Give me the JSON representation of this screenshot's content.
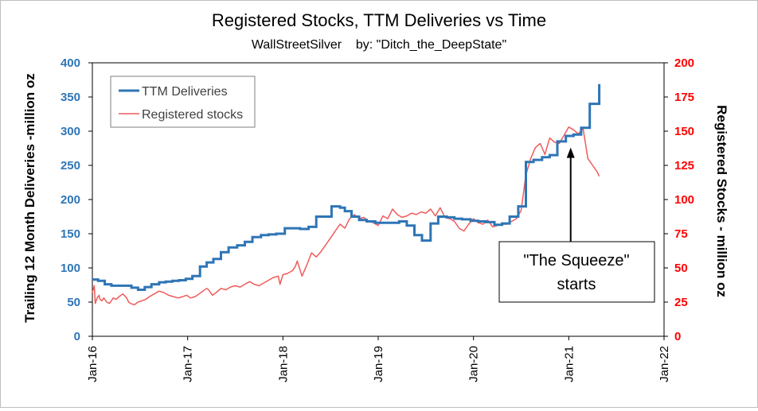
{
  "chart_data": {
    "type": "line",
    "title": "Registered Stocks, TTM Deliveries vs Time",
    "subtitle": "WallStreetSilver    by: \"Ditch_the_DeepState\"",
    "ylabel_left": "Trailing  12 Month Deliveries -million oz",
    "ylabel_right": "Registered Stocks  - million oz",
    "xlabel": "",
    "ylim_left": [
      0,
      400
    ],
    "ylim_right": [
      0,
      200
    ],
    "yticks_left": [
      "0",
      "50",
      "100",
      "150",
      "200",
      "250",
      "300",
      "350",
      "400"
    ],
    "yticks_right": [
      "0",
      "25",
      "50",
      "75",
      "100",
      "125",
      "150",
      "175",
      "200"
    ],
    "xlim": [
      2016.0,
      2022.0
    ],
    "xticks": [
      "Jan-16",
      "Jan-17",
      "Jan-18",
      "Jan-19",
      "Jan-20",
      "Jan-21",
      "Jan-22"
    ],
    "grid": false,
    "legend_position": "top-left",
    "colors": {
      "ttm": "#2e75b6",
      "registered": "#f05a5a",
      "left_axis": "#2e75b6",
      "right_axis": "#ff0000"
    },
    "series": [
      {
        "name": "TTM Deliveries",
        "axis": "left",
        "step": true,
        "x": [
          2016.0,
          2016.06,
          2016.13,
          2016.2,
          2016.27,
          2016.35,
          2016.41,
          2016.48,
          2016.55,
          2016.62,
          2016.7,
          2016.77,
          2016.84,
          2016.91,
          2016.98,
          2017.05,
          2017.13,
          2017.2,
          2017.27,
          2017.35,
          2017.43,
          2017.52,
          2017.6,
          2017.68,
          2017.77,
          2017.85,
          2017.93,
          2018.02,
          2018.1,
          2018.18,
          2018.27,
          2018.35,
          2018.43,
          2018.51,
          2018.6,
          2018.65,
          2018.72,
          2018.8,
          2018.88,
          2018.97,
          2019.05,
          2019.13,
          2019.22,
          2019.3,
          2019.38,
          2019.46,
          2019.55,
          2019.63,
          2019.72,
          2019.8,
          2019.88,
          2019.97,
          2020.05,
          2020.13,
          2020.22,
          2020.3,
          2020.38,
          2020.47,
          2020.55,
          2020.63,
          2020.72,
          2020.8,
          2020.88,
          2020.97,
          2021.05,
          2021.13,
          2021.22,
          2021.3,
          2021.32
        ],
        "values": [
          83,
          81,
          76,
          74,
          74,
          74,
          71,
          68,
          72,
          76,
          79,
          80,
          81,
          82,
          84,
          88,
          102,
          108,
          113,
          123,
          130,
          133,
          138,
          145,
          148,
          149,
          150,
          158,
          158,
          157,
          160,
          175,
          175,
          190,
          188,
          183,
          175,
          170,
          168,
          166,
          166,
          166,
          168,
          162,
          148,
          140,
          165,
          175,
          174,
          172,
          171,
          169,
          168,
          167,
          163,
          165,
          175,
          190,
          255,
          258,
          262,
          265,
          285,
          293,
          295,
          305,
          340,
          340,
          369
        ]
      },
      {
        "name": "Registered stocks",
        "axis": "right",
        "step": false,
        "x": [
          2016.0,
          2016.02,
          2016.03,
          2016.05,
          2016.07,
          2016.08,
          2016.1,
          2016.12,
          2016.15,
          2016.18,
          2016.22,
          2016.25,
          2016.28,
          2016.32,
          2016.36,
          2016.38,
          2016.4,
          2016.44,
          2016.48,
          2016.52,
          2016.56,
          2016.6,
          2016.65,
          2016.7,
          2016.75,
          2016.8,
          2016.85,
          2016.9,
          2016.95,
          2016.99,
          2017.03,
          2017.08,
          2017.12,
          2017.16,
          2017.2,
          2017.22,
          2017.26,
          2017.3,
          2017.35,
          2017.4,
          2017.45,
          2017.5,
          2017.55,
          2017.6,
          2017.65,
          2017.7,
          2017.75,
          2017.8,
          2017.85,
          2017.9,
          2017.95,
          2017.97,
          2018.0,
          2018.05,
          2018.1,
          2018.13,
          2018.15,
          2018.2,
          2018.25,
          2018.3,
          2018.35,
          2018.4,
          2018.45,
          2018.5,
          2018.55,
          2018.6,
          2018.65,
          2018.7,
          2018.75,
          2018.8,
          2018.85,
          2018.9,
          2018.95,
          2019.0,
          2019.05,
          2019.1,
          2019.15,
          2019.2,
          2019.25,
          2019.3,
          2019.35,
          2019.4,
          2019.45,
          2019.5,
          2019.55,
          2019.6,
          2019.65,
          2019.7,
          2019.75,
          2019.8,
          2019.85,
          2019.9,
          2019.95,
          2020.0,
          2020.05,
          2020.1,
          2020.15,
          2020.2,
          2020.25,
          2020.3,
          2020.35,
          2020.4,
          2020.45,
          2020.5,
          2020.55,
          2020.6,
          2020.65,
          2020.7,
          2020.75,
          2020.8,
          2020.85,
          2020.9,
          2020.95,
          2021.0,
          2021.05,
          2021.1,
          2021.15,
          2021.2,
          2021.25,
          2021.3,
          2021.32
        ],
        "values": [
          32,
          37,
          24,
          28,
          30,
          27,
          26,
          28,
          25,
          24,
          28,
          27,
          29,
          31,
          28,
          25,
          24,
          23,
          25,
          26,
          27,
          29,
          31,
          33,
          32,
          30,
          29,
          28,
          29,
          30,
          28,
          29,
          31,
          33,
          35,
          34,
          30,
          32,
          35,
          34,
          36,
          37,
          36,
          38,
          40,
          38,
          37,
          39,
          41,
          43,
          44,
          38,
          45,
          46,
          48,
          51,
          55,
          44,
          52,
          61,
          58,
          62,
          67,
          72,
          77,
          82,
          79,
          86,
          89,
          86,
          87,
          84,
          83,
          81,
          88,
          86,
          93,
          89,
          87,
          88,
          90,
          89,
          91,
          90,
          93,
          88,
          94,
          87,
          86,
          84,
          79,
          77,
          82,
          86,
          83,
          82,
          85,
          80,
          81,
          82,
          82,
          84,
          86,
          92,
          118,
          130,
          138,
          141,
          133,
          145,
          142,
          141,
          147,
          153,
          151,
          148,
          152,
          130,
          125,
          120,
          117
        ]
      }
    ],
    "annotations": [
      {
        "text_line1": "\"The Squeeze\"",
        "text_line2": "starts",
        "arrow_target_x": 2021.02,
        "arrow_target_y_left": 276
      }
    ]
  }
}
